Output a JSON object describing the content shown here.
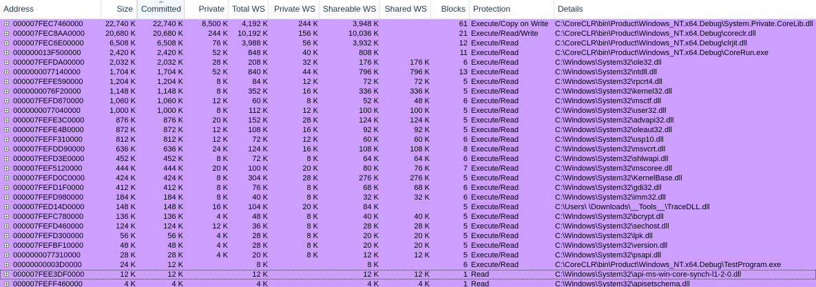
{
  "headers": {
    "address": "Address",
    "size": "Size",
    "committed": "Committed",
    "private": "Private",
    "total_ws": "Total WS",
    "private_ws": "Private WS",
    "shareable_ws": "Shareable WS",
    "shared_ws": "Shared WS",
    "blocks": "Blocks",
    "protection": "Protection",
    "details": "Details"
  },
  "expand_glyph": "+",
  "selected_row_index": 26,
  "colors": {
    "row_background": "#cc9fff",
    "header_text": "#1e395b"
  },
  "rows": [
    {
      "address": "000007FEC7460000",
      "size": "22,740 K",
      "committed": "22,740 K",
      "private": "8,500 K",
      "total_ws": "4,192 K",
      "private_ws": "244 K",
      "shareable_ws": "3,948 K",
      "shared_ws": "",
      "blocks": "61",
      "protection": "Execute/Copy on Write",
      "details": "C:\\CoreCLR\\bin\\Product\\Windows_NT.x64.Debug\\System.Private.CoreLib.dll"
    },
    {
      "address": "000007FEC8AA0000",
      "size": "20,680 K",
      "committed": "20,680 K",
      "private": "244 K",
      "total_ws": "10,192 K",
      "private_ws": "156 K",
      "shareable_ws": "10,036 K",
      "shared_ws": "",
      "blocks": "21",
      "protection": "Execute/Read/Write",
      "details": "C:\\CoreCLR\\bin\\Product\\Windows_NT.x64.Debug\\coreclr.dll"
    },
    {
      "address": "000007FEC6E00000",
      "size": "6,508 K",
      "committed": "6,508 K",
      "private": "76 K",
      "total_ws": "3,988 K",
      "private_ws": "56 K",
      "shareable_ws": "3,932 K",
      "shared_ws": "",
      "blocks": "12",
      "protection": "Execute/Read",
      "details": "C:\\CoreCLR\\bin\\Product\\Windows_NT.x64.Debug\\clrjit.dll"
    },
    {
      "address": "000000013F500000",
      "size": "2,420 K",
      "committed": "2,420 K",
      "private": "52 K",
      "total_ws": "848 K",
      "private_ws": "40 K",
      "shareable_ws": "808 K",
      "shared_ws": "",
      "blocks": "11",
      "protection": "Execute/Read",
      "details": "C:\\CoreCLR\\bin\\Product\\Windows_NT.x64.Debug\\CoreRun.exe"
    },
    {
      "address": "000007FEFDA00000",
      "size": "2,032 K",
      "committed": "2,032 K",
      "private": "28 K",
      "total_ws": "208 K",
      "private_ws": "32 K",
      "shareable_ws": "176 K",
      "shared_ws": "176 K",
      "blocks": "6",
      "protection": "Execute/Read",
      "details": "C:\\Windows\\System32\\ole32.dll"
    },
    {
      "address": "0000000077140000",
      "size": "1,704 K",
      "committed": "1,704 K",
      "private": "52 K",
      "total_ws": "840 K",
      "private_ws": "44 K",
      "shareable_ws": "796 K",
      "shared_ws": "796 K",
      "blocks": "13",
      "protection": "Execute/Read",
      "details": "C:\\Windows\\System32\\ntdll.dll"
    },
    {
      "address": "000007FEFE590000",
      "size": "1,204 K",
      "committed": "1,204 K",
      "private": "8 K",
      "total_ws": "84 K",
      "private_ws": "12 K",
      "shareable_ws": "72 K",
      "shared_ws": "72 K",
      "blocks": "5",
      "protection": "Execute/Read",
      "details": "C:\\Windows\\System32\\rpcrt4.dll"
    },
    {
      "address": "0000000076F20000",
      "size": "1,148 K",
      "committed": "1,148 K",
      "private": "8 K",
      "total_ws": "352 K",
      "private_ws": "16 K",
      "shareable_ws": "336 K",
      "shared_ws": "336 K",
      "blocks": "5",
      "protection": "Execute/Read",
      "details": "C:\\Windows\\System32\\kernel32.dll"
    },
    {
      "address": "000007FEFD870000",
      "size": "1,060 K",
      "committed": "1,060 K",
      "private": "12 K",
      "total_ws": "60 K",
      "private_ws": "8 K",
      "shareable_ws": "52 K",
      "shared_ws": "48 K",
      "blocks": "6",
      "protection": "Execute/Read",
      "details": "C:\\Windows\\System32\\msctf.dll"
    },
    {
      "address": "0000000077040000",
      "size": "1,000 K",
      "committed": "1,000 K",
      "private": "8 K",
      "total_ws": "112 K",
      "private_ws": "12 K",
      "shareable_ws": "100 K",
      "shared_ws": "100 K",
      "blocks": "5",
      "protection": "Execute/Read",
      "details": "C:\\Windows\\System32\\user32.dll"
    },
    {
      "address": "000007FEFE3C0000",
      "size": "876 K",
      "committed": "876 K",
      "private": "20 K",
      "total_ws": "152 K",
      "private_ws": "28 K",
      "shareable_ws": "124 K",
      "shared_ws": "124 K",
      "blocks": "5",
      "protection": "Execute/Read",
      "details": "C:\\Windows\\System32\\advapi32.dll"
    },
    {
      "address": "000007FEFE4B0000",
      "size": "872 K",
      "committed": "872 K",
      "private": "12 K",
      "total_ws": "108 K",
      "private_ws": "16 K",
      "shareable_ws": "92 K",
      "shared_ws": "92 K",
      "blocks": "5",
      "protection": "Execute/Read",
      "details": "C:\\Windows\\System32\\oleaut32.dll"
    },
    {
      "address": "000007FEFF310000",
      "size": "812 K",
      "committed": "812 K",
      "private": "12 K",
      "total_ws": "72 K",
      "private_ws": "12 K",
      "shareable_ws": "60 K",
      "shared_ws": "60 K",
      "blocks": "6",
      "protection": "Execute/Read",
      "details": "C:\\Windows\\System32\\usp10.dll"
    },
    {
      "address": "000007FEFDD90000",
      "size": "636 K",
      "committed": "636 K",
      "private": "24 K",
      "total_ws": "124 K",
      "private_ws": "16 K",
      "shareable_ws": "108 K",
      "shared_ws": "108 K",
      "blocks": "8",
      "protection": "Execute/Read",
      "details": "C:\\Windows\\System32\\msvcrt.dll"
    },
    {
      "address": "000007FEFD3E0000",
      "size": "452 K",
      "committed": "452 K",
      "private": "8 K",
      "total_ws": "72 K",
      "private_ws": "8 K",
      "shareable_ws": "64 K",
      "shared_ws": "64 K",
      "blocks": "6",
      "protection": "Execute/Read",
      "details": "C:\\Windows\\System32\\shlwapi.dll"
    },
    {
      "address": "000007FEF5120000",
      "size": "444 K",
      "committed": "444 K",
      "private": "20 K",
      "total_ws": "100 K",
      "private_ws": "20 K",
      "shareable_ws": "80 K",
      "shared_ws": "76 K",
      "blocks": "7",
      "protection": "Execute/Read",
      "details": "C:\\Windows\\System32\\mscoree.dll"
    },
    {
      "address": "000007FEFD0C0000",
      "size": "424 K",
      "committed": "424 K",
      "private": "8 K",
      "total_ws": "304 K",
      "private_ws": "28 K",
      "shareable_ws": "276 K",
      "shared_ws": "276 K",
      "blocks": "5",
      "protection": "Execute/Read",
      "details": "C:\\Windows\\System32\\KernelBase.dll"
    },
    {
      "address": "000007FEFD1F0000",
      "size": "412 K",
      "committed": "412 K",
      "private": "8 K",
      "total_ws": "76 K",
      "private_ws": "8 K",
      "shareable_ws": "68 K",
      "shared_ws": "68 K",
      "blocks": "6",
      "protection": "Execute/Read",
      "details": "C:\\Windows\\System32\\gdi32.dll"
    },
    {
      "address": "000007FEFD980000",
      "size": "184 K",
      "committed": "184 K",
      "private": "8 K",
      "total_ws": "40 K",
      "private_ws": "8 K",
      "shareable_ws": "32 K",
      "shared_ws": "32 K",
      "blocks": "6",
      "protection": "Execute/Read",
      "details": "C:\\Windows\\System32\\imm32.dll"
    },
    {
      "address": "000007FED14D0000",
      "size": "148 K",
      "committed": "148 K",
      "private": "16 K",
      "total_ws": "104 K",
      "private_ws": "20 K",
      "shareable_ws": "84 K",
      "shared_ws": "",
      "blocks": "5",
      "protection": "Execute/Read",
      "details": "C:\\Users\\               \\Downloads\\__Tools__\\TraceDLL.dll"
    },
    {
      "address": "000007FEFC780000",
      "size": "136 K",
      "committed": "136 K",
      "private": "4 K",
      "total_ws": "48 K",
      "private_ws": "8 K",
      "shareable_ws": "40 K",
      "shared_ws": "40 K",
      "blocks": "5",
      "protection": "Execute/Read",
      "details": "C:\\Windows\\System32\\bcrypt.dll"
    },
    {
      "address": "000007FEFD460000",
      "size": "124 K",
      "committed": "124 K",
      "private": "12 K",
      "total_ws": "36 K",
      "private_ws": "8 K",
      "shareable_ws": "28 K",
      "shared_ws": "28 K",
      "blocks": "5",
      "protection": "Execute/Read",
      "details": "C:\\Windows\\System32\\sechost.dll"
    },
    {
      "address": "000007FEFD300000",
      "size": "56 K",
      "committed": "56 K",
      "private": "4 K",
      "total_ws": "28 K",
      "private_ws": "8 K",
      "shareable_ws": "20 K",
      "shared_ws": "20 K",
      "blocks": "5",
      "protection": "Execute/Read",
      "details": "C:\\Windows\\System32\\lpk.dll"
    },
    {
      "address": "000007FEFBF10000",
      "size": "48 K",
      "committed": "48 K",
      "private": "4 K",
      "total_ws": "28 K",
      "private_ws": "8 K",
      "shareable_ws": "20 K",
      "shared_ws": "20 K",
      "blocks": "5",
      "protection": "Execute/Read",
      "details": "C:\\Windows\\System32\\version.dll"
    },
    {
      "address": "0000000077310000",
      "size": "28 K",
      "committed": "28 K",
      "private": "4 K",
      "total_ws": "20 K",
      "private_ws": "8 K",
      "shareable_ws": "12 K",
      "shared_ws": "12 K",
      "blocks": "5",
      "protection": "Execute/Read",
      "details": "C:\\Windows\\System32\\psapi.dll"
    },
    {
      "address": "00000000003D0000",
      "size": "24 K",
      "committed": "12 K",
      "private": "",
      "total_ws": "8 K",
      "private_ws": "",
      "shareable_ws": "8 K",
      "shared_ws": "",
      "blocks": "6",
      "protection": "Execute/Read",
      "details": "C:\\CoreCLR\\bin\\Product\\Windows_NT.x64.Debug\\TestProgram.exe"
    },
    {
      "address": "000007FEE3DF0000",
      "size": "12 K",
      "committed": "12 K",
      "private": "",
      "total_ws": "12 K",
      "private_ws": "",
      "shareable_ws": "12 K",
      "shared_ws": "12 K",
      "blocks": "1",
      "protection": "Read",
      "details": "C:\\Windows\\System32\\api-ms-win-core-synch-l1-2-0.dll"
    },
    {
      "address": "000007FEFF460000",
      "size": "4 K",
      "committed": "4 K",
      "private": "",
      "total_ws": "4 K",
      "private_ws": "",
      "shareable_ws": "4 K",
      "shared_ws": "4 K",
      "blocks": "1",
      "protection": "Read",
      "details": "C:\\Windows\\System32\\apisetschema.dll"
    }
  ]
}
